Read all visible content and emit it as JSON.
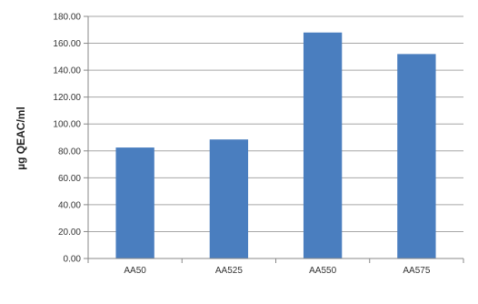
{
  "chart_data": {
    "type": "bar",
    "categories": [
      "AA50",
      "AA525",
      "AA550",
      "AA575"
    ],
    "values": [
      82.5,
      88.5,
      168.0,
      152.0
    ],
    "title": "",
    "xlabel": "",
    "ylabel": "µg QEAC/ml",
    "ylim": [
      0,
      180
    ],
    "yticks": [
      "0.00",
      "20.00",
      "40.00",
      "60.00",
      "80.00",
      "100.00",
      "120.00",
      "140.00",
      "160.00",
      "180.00"
    ],
    "grid": true,
    "legend": "none",
    "bar_color": "#4a7ebf",
    "grid_color": "#a6a6a6",
    "axis_color": "#888888"
  }
}
